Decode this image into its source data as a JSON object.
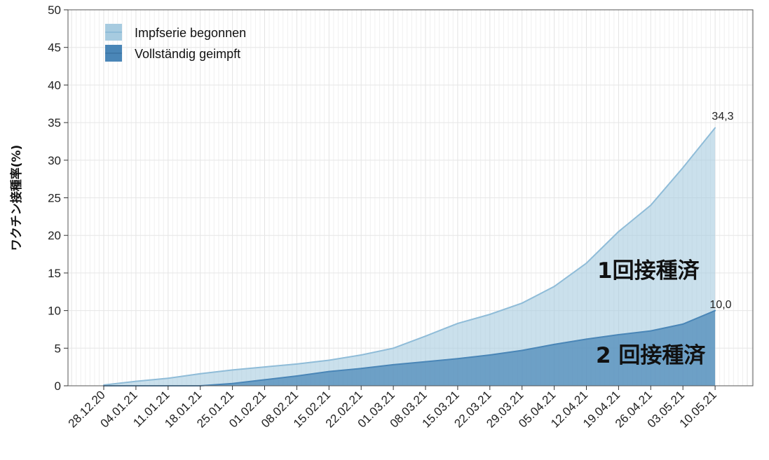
{
  "chart_data": {
    "type": "area",
    "ylabel": "ワクチン接種率(%)",
    "ylim": [
      0,
      50
    ],
    "yticks": [
      "0",
      "5",
      "10",
      "15",
      "20",
      "25",
      "30",
      "35",
      "40",
      "45",
      "50"
    ],
    "xticks": [
      "28.12.20",
      "04.01.21",
      "11.01.21",
      "18.01.21",
      "25.01.21",
      "01.02.21",
      "08.02.21",
      "15.02.21",
      "22.02.21",
      "01.03.21",
      "08.03.21",
      "15.03.21",
      "22.03.21",
      "29.03.21",
      "05.04.21",
      "12.04.21",
      "19.04.21",
      "26.04.21",
      "03.05.21",
      "10.05.21"
    ],
    "grid": true,
    "legend_position": "top-left",
    "series": [
      {
        "name": "Impfserie begonnen",
        "color": "#a7cbe0",
        "line_color": "#8fbcd8",
        "end_label": "34,3",
        "points": [
          [
            "28.12.20",
            0.1
          ],
          [
            "04.01.21",
            0.6
          ],
          [
            "11.01.21",
            1.0
          ],
          [
            "18.01.21",
            1.6
          ],
          [
            "25.01.21",
            2.1
          ],
          [
            "01.02.21",
            2.5
          ],
          [
            "08.02.21",
            2.9
          ],
          [
            "15.02.21",
            3.4
          ],
          [
            "22.02.21",
            4.1
          ],
          [
            "01.03.21",
            5.0
          ],
          [
            "08.03.21",
            6.6
          ],
          [
            "15.03.21",
            8.3
          ],
          [
            "22.03.21",
            9.5
          ],
          [
            "29.03.21",
            11.0
          ],
          [
            "05.04.21",
            13.2
          ],
          [
            "12.04.21",
            16.3
          ],
          [
            "19.04.21",
            20.5
          ],
          [
            "26.04.21",
            24.0
          ],
          [
            "03.05.21",
            29.0
          ],
          [
            "10.05.21",
            34.3
          ]
        ]
      },
      {
        "name": "Vollständig geimpft",
        "color": "#4a86b7",
        "line_color": "#4a86b7",
        "end_label": "10,0",
        "points": [
          [
            "28.12.20",
            0.0
          ],
          [
            "04.01.21",
            0.0
          ],
          [
            "11.01.21",
            0.0
          ],
          [
            "18.01.21",
            0.0
          ],
          [
            "25.01.21",
            0.3
          ],
          [
            "01.02.21",
            0.8
          ],
          [
            "08.02.21",
            1.3
          ],
          [
            "15.02.21",
            1.9
          ],
          [
            "22.02.21",
            2.3
          ],
          [
            "01.03.21",
            2.8
          ],
          [
            "08.03.21",
            3.2
          ],
          [
            "15.03.21",
            3.6
          ],
          [
            "22.03.21",
            4.1
          ],
          [
            "29.03.21",
            4.7
          ],
          [
            "05.04.21",
            5.5
          ],
          [
            "12.04.21",
            6.2
          ],
          [
            "19.04.21",
            6.8
          ],
          [
            "26.04.21",
            7.3
          ],
          [
            "03.05.21",
            8.2
          ],
          [
            "10.05.21",
            10.0
          ]
        ]
      }
    ],
    "annotations": [
      {
        "text": "1回接種済"
      },
      {
        "text": "2 回接種済"
      }
    ]
  }
}
